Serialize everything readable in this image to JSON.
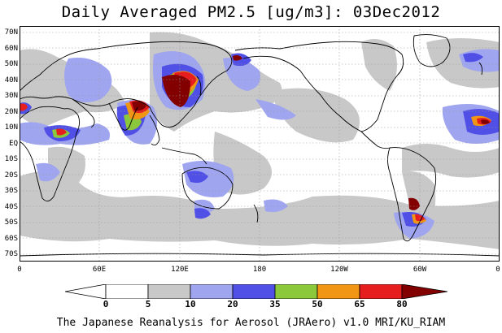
{
  "title": "Daily Averaged PM2.5 [ug/m3]: 03Dec2012",
  "footer": "The Japanese Reanalysis for Aerosol (JRAero) v1.0 MRI/KU_RIAM",
  "map": {
    "projection": "equirectangular, 0 to 360 longitude",
    "lat_labels": [
      "70N",
      "60N",
      "50N",
      "40N",
      "30N",
      "20N",
      "10N",
      "EQ",
      "10S",
      "20S",
      "30S",
      "40S",
      "50S",
      "60S",
      "70S"
    ],
    "lon_labels": [
      "0",
      "60E",
      "120E",
      "180",
      "120W",
      "60W",
      "0"
    ],
    "grid": true
  },
  "legend": {
    "levels": [
      "0",
      "5",
      "10",
      "20",
      "35",
      "50",
      "65",
      "80"
    ],
    "colors": {
      "lt5": "#ffffff",
      "5-10": "#c8c8c8",
      "10-20": "#a0a5f0",
      "20-35": "#5050e6",
      "35-50": "#8cc83c",
      "50-65": "#f09614",
      "65-80": "#e61e1e",
      "ge80": "#820000"
    }
  }
}
